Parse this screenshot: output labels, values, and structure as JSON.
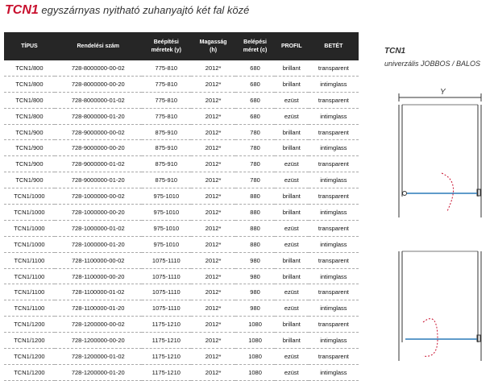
{
  "header": {
    "code": "TCN1",
    "title": "egyszárnyas nyitható zuhanyajtó két fal közé"
  },
  "table": {
    "columns": [
      [
        "TÍPUS"
      ],
      [
        "Rendelési szám"
      ],
      [
        "Beépítési",
        "méretek (y)"
      ],
      [
        "Magasság",
        "(h)"
      ],
      [
        "Belépési",
        "méret (c)"
      ],
      [
        "PROFIL"
      ],
      [
        "BETÉT"
      ]
    ],
    "rows": [
      [
        "TCN1/800",
        "728-8000000-00-02",
        "775-810",
        "2012*",
        "680",
        "brillant",
        "transparent"
      ],
      [
        "TCN1/800",
        "728-8000000-00-20",
        "775-810",
        "2012*",
        "680",
        "brillant",
        "intimglass"
      ],
      [
        "TCN1/800",
        "728-8000000-01-02",
        "775-810",
        "2012*",
        "680",
        "ezüst",
        "transparent"
      ],
      [
        "TCN1/800",
        "728-8000000-01-20",
        "775-810",
        "2012*",
        "680",
        "ezüst",
        "intimglass"
      ],
      [
        "TCN1/900",
        "728-9000000-00-02",
        "875-910",
        "2012*",
        "780",
        "brillant",
        "transparent"
      ],
      [
        "TCN1/900",
        "728-9000000-00-20",
        "875-910",
        "2012*",
        "780",
        "brillant",
        "intimglass"
      ],
      [
        "TCN1/900",
        "728-9000000-01-02",
        "875-910",
        "2012*",
        "780",
        "ezüst",
        "transparent"
      ],
      [
        "TCN1/900",
        "728-9000000-01-20",
        "875-910",
        "2012*",
        "780",
        "ezüst",
        "intimglass"
      ],
      [
        "TCN1/1000",
        "728-1000000-00-02",
        "975-1010",
        "2012*",
        "880",
        "brillant",
        "transparent"
      ],
      [
        "TCN1/1000",
        "728-1000000-00-20",
        "975-1010",
        "2012*",
        "880",
        "brillant",
        "intimglass"
      ],
      [
        "TCN1/1000",
        "728-1000000-01-02",
        "975-1010",
        "2012*",
        "880",
        "ezüst",
        "transparent"
      ],
      [
        "TCN1/1000",
        "728-1000000-01-20",
        "975-1010",
        "2012*",
        "880",
        "ezüst",
        "intimglass"
      ],
      [
        "TCN1/1100",
        "728-1100000-00-02",
        "1075-1110",
        "2012*",
        "980",
        "brillant",
        "transparent"
      ],
      [
        "TCN1/1100",
        "728-1100000-00-20",
        "1075-1110",
        "2012*",
        "980",
        "brillant",
        "intimglass"
      ],
      [
        "TCN1/1100",
        "728-1100000-01-02",
        "1075-1110",
        "2012*",
        "980",
        "ezüst",
        "transparent"
      ],
      [
        "TCN1/1100",
        "728-1100000-01-20",
        "1075-1110",
        "2012*",
        "980",
        "ezüst",
        "intimglass"
      ],
      [
        "TCN1/1200",
        "728-1200000-00-02",
        "1175-1210",
        "2012*",
        "1080",
        "brillant",
        "transparent"
      ],
      [
        "TCN1/1200",
        "728-1200000-00-20",
        "1175-1210",
        "2012*",
        "1080",
        "brillant",
        "intimglass"
      ],
      [
        "TCN1/1200",
        "728-1200000-01-02",
        "1175-1210",
        "2012*",
        "1080",
        "ezüst",
        "transparent"
      ],
      [
        "TCN1/1200",
        "728-1200000-01-20",
        "1175-1210",
        "2012*",
        "1080",
        "ezüst",
        "intimglass"
      ]
    ]
  },
  "side": {
    "model": "TCN1",
    "subtitle": "univerzális JOBBOS / BALOS",
    "dimension": "Y"
  }
}
